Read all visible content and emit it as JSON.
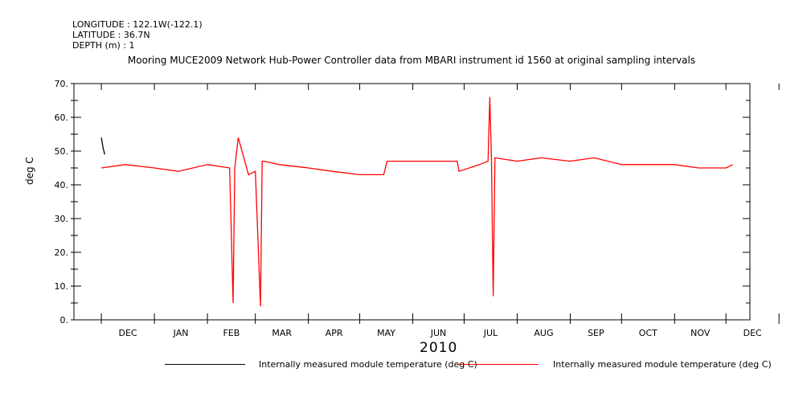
{
  "meta": {
    "longitude": "LONGITUDE : 122.1W(-122.1)",
    "latitude": "LATITUDE : 36.7N",
    "depth": "DEPTH (m) : 1"
  },
  "chart_data": {
    "type": "line",
    "title": "Mooring MUCE2009 Network Hub-Power Controller data from MBARI instrument id 1560 at original sampling intervals",
    "ylabel": "deg C",
    "xlabel": "2010",
    "ylim": [
      0,
      70
    ],
    "yticks": [
      0,
      10,
      20,
      30,
      40,
      50,
      60,
      70
    ],
    "ytick_labels": [
      "0.",
      "10.",
      "20.",
      "30.",
      "40.",
      "50.",
      "60.",
      "70."
    ],
    "months": [
      "DEC",
      "JAN",
      "FEB",
      "MAR",
      "APR",
      "MAY",
      "JUN",
      "JUL",
      "AUG",
      "SEP",
      "OCT",
      "NOV",
      "DEC"
    ],
    "series": [
      {
        "name": "Internally measured module temperature (deg C)",
        "color": "#000000",
        "x": [
          "2009-12-01",
          "2009-12-02",
          "2009-12-03"
        ],
        "y": [
          54,
          51,
          49
        ]
      },
      {
        "name": "Internally measured module temperature (deg C)",
        "color": "#ff0000",
        "x": [
          "2009-12-01",
          "2009-12-15",
          "2010-01-01",
          "2010-01-15",
          "2010-02-01",
          "2010-02-14",
          "2010-02-16",
          "2010-02-17",
          "2010-02-19",
          "2010-02-25",
          "2010-03-01",
          "2010-03-04",
          "2010-03-05",
          "2010-03-06",
          "2010-03-15",
          "2010-04-01",
          "2010-04-15",
          "2010-05-01",
          "2010-05-15",
          "2010-05-17",
          "2010-06-01",
          "2010-06-15",
          "2010-06-27",
          "2010-06-28",
          "2010-07-10",
          "2010-07-15",
          "2010-07-16",
          "2010-07-17",
          "2010-07-18",
          "2010-07-19",
          "2010-08-01",
          "2010-08-15",
          "2010-09-01",
          "2010-09-15",
          "2010-10-01",
          "2010-10-15",
          "2010-11-01",
          "2010-11-15",
          "2010-12-01",
          "2010-12-05"
        ],
        "y": [
          45,
          46,
          45,
          44,
          46,
          45,
          5,
          45,
          54,
          43,
          44,
          4,
          47,
          47,
          46,
          45,
          44,
          43,
          43,
          47,
          47,
          47,
          47,
          44,
          46,
          47,
          66,
          47,
          7,
          48,
          47,
          48,
          47,
          48,
          46,
          46,
          46,
          45,
          45,
          46
        ]
      }
    ]
  }
}
